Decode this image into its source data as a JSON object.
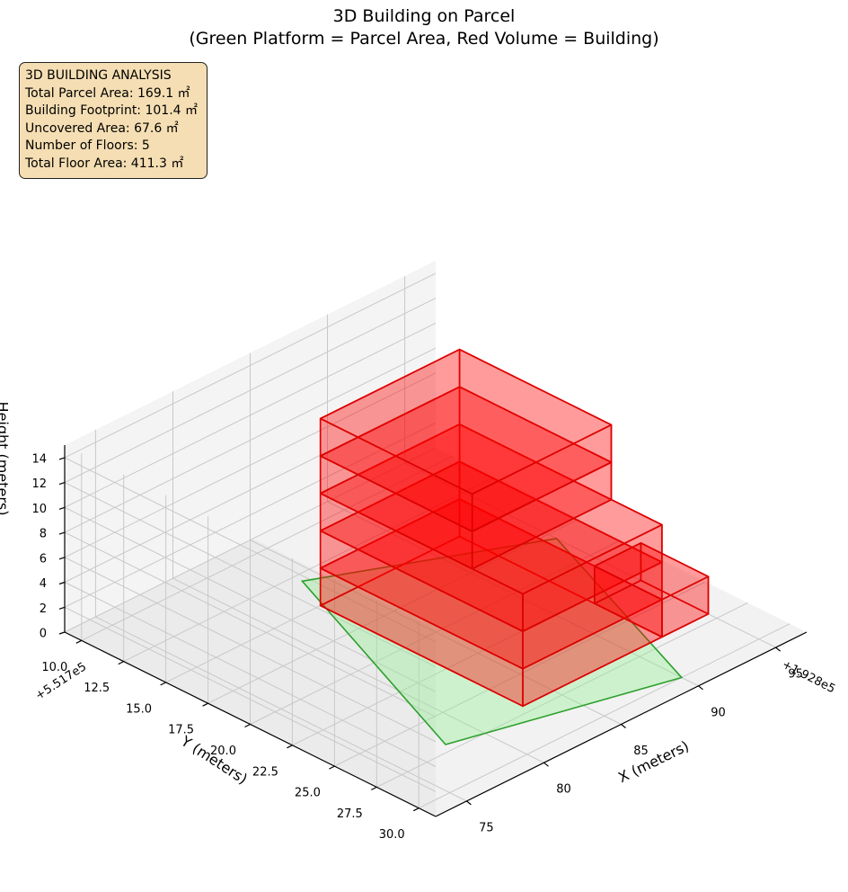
{
  "chart_data": {
    "type": "3d-box",
    "title_line1": "3D Building on Parcel",
    "title_line2": "(Green Platform = Parcel Area, Red Volume = Building)",
    "info_box": {
      "heading": "3D BUILDING ANALYSIS",
      "lines": [
        "Total Parcel Area: 169.1 ㎡",
        "Building Footprint: 101.4 ㎡",
        "Uncovered Area: 67.6 ㎡",
        "Number of Floors: 5",
        "Total Floor Area: 411.3 ㎡"
      ]
    },
    "x_axis": {
      "label": "X (meters)",
      "offset": "+1.928e5",
      "ticks": [
        75,
        80,
        85,
        90,
        95
      ],
      "tick_labels": [
        "75",
        "80",
        "85",
        "90",
        "95"
      ],
      "range": [
        73,
        97
      ]
    },
    "y_axis": {
      "label": "Y (meters)",
      "offset": "+5.517e5",
      "ticks": [
        10.0,
        12.5,
        15.0,
        17.5,
        20.0,
        22.5,
        25.0,
        27.5,
        30.0
      ],
      "tick_labels": [
        "10.0",
        "12.5",
        "15.0",
        "17.5",
        "20.0",
        "22.5",
        "25.0",
        "27.5",
        "30.0"
      ],
      "range": [
        9,
        31
      ]
    },
    "z_axis": {
      "label": "Height (meters)",
      "ticks": [
        0,
        2,
        4,
        6,
        8,
        10,
        12,
        14
      ],
      "tick_labels": [
        "0",
        "2",
        "4",
        "6",
        "8",
        "10",
        "12",
        "14"
      ],
      "range": [
        0,
        15
      ]
    },
    "parcel": {
      "name": "Parcel Area",
      "color": "#2ca02c",
      "fill": "#90ee90",
      "corners": [
        [
          78,
          27
        ],
        [
          84,
          13
        ],
        [
          95,
          18
        ],
        [
          90,
          30
        ]
      ]
    },
    "floors": [
      {
        "floor": 1,
        "x": [
          83,
          92
        ],
        "y": [
          15,
          27
        ],
        "z": [
          0,
          3
        ]
      },
      {
        "floor": 2,
        "x": [
          83,
          92
        ],
        "y": [
          15,
          27
        ],
        "z": [
          3,
          6
        ]
      },
      {
        "floor": 3,
        "x": [
          83,
          92
        ],
        "y": [
          15,
          27
        ],
        "z": [
          6,
          9
        ]
      },
      {
        "floor": 4,
        "x": [
          83,
          92
        ],
        "y": [
          15,
          24
        ],
        "z": [
          9,
          12
        ]
      },
      {
        "floor": 5,
        "x": [
          83,
          92
        ],
        "y": [
          15,
          24
        ],
        "z": [
          12,
          15
        ]
      },
      {
        "floor": "annex",
        "x": [
          92,
          95
        ],
        "y": [
          23,
          27
        ],
        "z": [
          0,
          3
        ]
      }
    ],
    "building_color": "#ff0000",
    "edge_color": "#dd0000"
  }
}
